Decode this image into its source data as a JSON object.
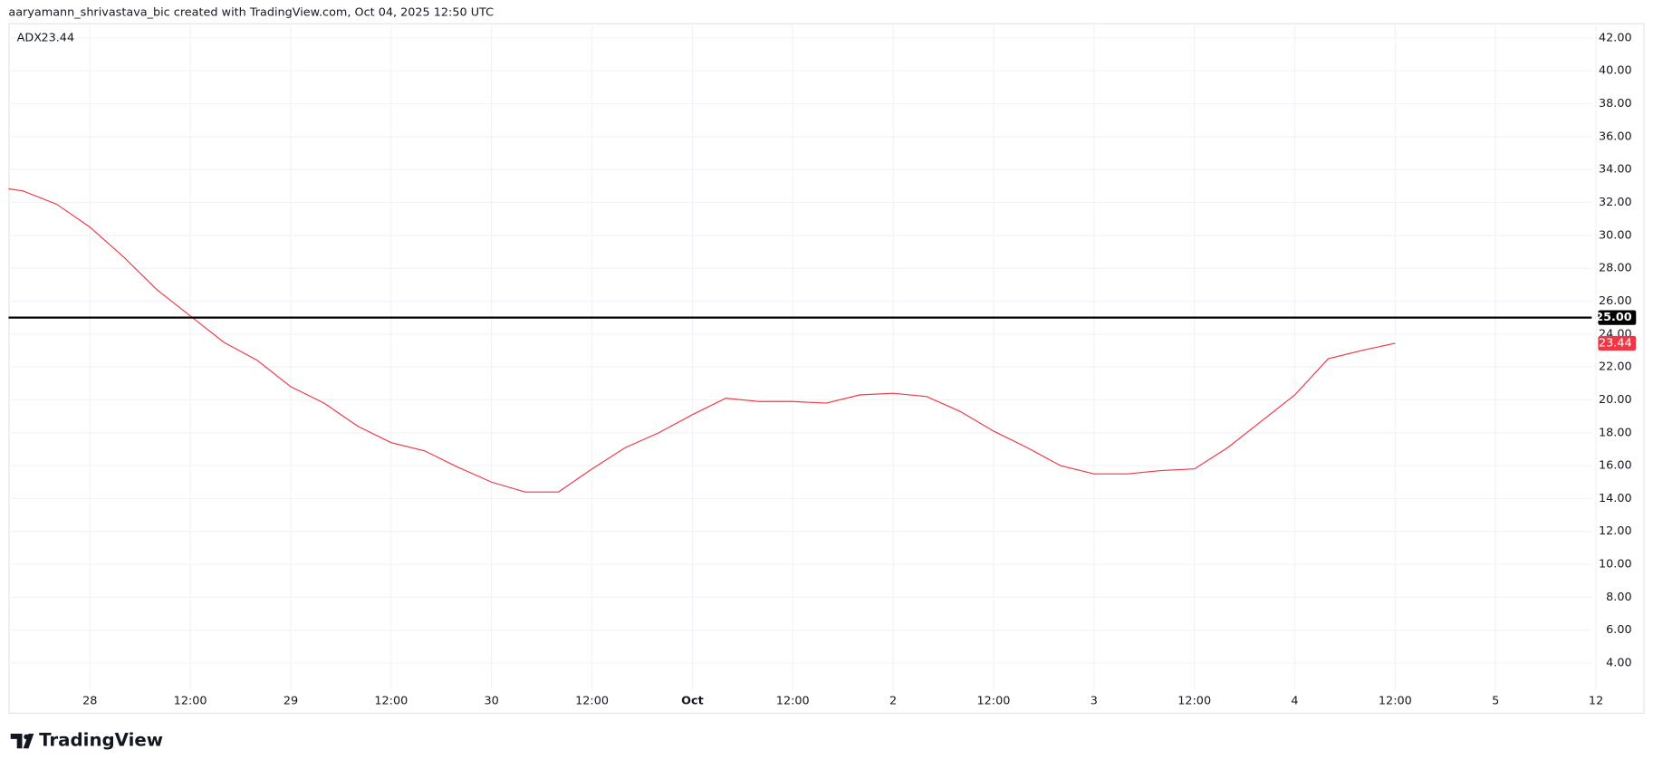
{
  "header": "aaryamann_shrivastava_bic created with TradingView.com, Oct 04, 2025 12:50 UTC",
  "brand": "TradingView",
  "chart_data": {
    "type": "line",
    "categories": [
      null,
      null,
      null,
      "28",
      null,
      null,
      "12:00",
      null,
      null,
      "29",
      null,
      null,
      "12:00",
      null,
      null,
      "30",
      null,
      null,
      "12:00",
      null,
      null,
      "Oct",
      null,
      null,
      "12:00",
      null,
      null,
      "2",
      null,
      null,
      "12:00",
      null,
      null,
      "3",
      null,
      null,
      "12:00",
      null,
      null,
      "4",
      null,
      null,
      "12:00",
      null,
      null,
      "5",
      null,
      null,
      "12"
    ],
    "series": [
      {
        "name": "ADX",
        "color": "#f23645",
        "values": [
          33.0,
          32.7,
          31.9,
          30.5,
          28.7,
          26.7,
          25.1,
          23.5,
          22.4,
          20.8,
          19.8,
          18.4,
          17.4,
          16.9,
          15.9,
          15.0,
          14.4,
          14.4,
          15.8,
          17.1,
          18.0,
          19.1,
          20.1,
          19.9,
          19.9,
          19.8,
          20.3,
          20.4,
          20.2,
          19.3,
          18.1,
          17.1,
          16.0,
          15.5,
          15.5,
          15.7,
          15.8,
          17.1,
          18.7,
          20.3,
          22.5,
          23.0,
          23.44,
          null,
          null,
          null,
          null,
          null,
          null
        ]
      }
    ],
    "ylim": [
      3,
      43
    ],
    "yticks": [
      {
        "value": 4,
        "label": "4.00"
      },
      {
        "value": 6,
        "label": "6.00"
      },
      {
        "value": 8,
        "label": "8.00"
      },
      {
        "value": 10,
        "label": "10.00"
      },
      {
        "value": 12,
        "label": "12.00"
      },
      {
        "value": 14,
        "label": "14.00"
      },
      {
        "value": 16,
        "label": "16.00"
      },
      {
        "value": 18,
        "label": "18.00"
      },
      {
        "value": 20,
        "label": "20.00"
      },
      {
        "value": 22,
        "label": "22.00"
      },
      {
        "value": 24,
        "label": "24.00"
      },
      {
        "value": 26,
        "label": "26.00"
      },
      {
        "value": 28,
        "label": "28.00"
      },
      {
        "value": 30,
        "label": "30.00"
      },
      {
        "value": 32,
        "label": "32.00"
      },
      {
        "value": 34,
        "label": "34.00"
      },
      {
        "value": 36,
        "label": "36.00"
      },
      {
        "value": 38,
        "label": "38.00"
      },
      {
        "value": 40,
        "label": "40.00"
      },
      {
        "value": 42,
        "label": "42.00"
      }
    ],
    "hline": {
      "value": 25,
      "label": "25.00",
      "color": "#000000"
    },
    "grid": true
  }
}
